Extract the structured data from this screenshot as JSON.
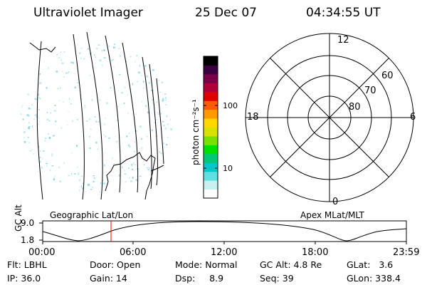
{
  "header": {
    "instrument": "Ultraviolet Imager",
    "date": "25 Dec 07",
    "time": "04:34:55 UT"
  },
  "colorbar": {
    "label": "photon cm⁻²s⁻¹",
    "ticks": [
      "100",
      "10"
    ],
    "colors": [
      "#ffffff",
      "#c8f0f0",
      "#5fe0e0",
      "#00c8c8",
      "#00c878",
      "#00e000",
      "#7ae000",
      "#d8e000",
      "#ffd800",
      "#ff9a00",
      "#ff5a00",
      "#e00000",
      "#b0003a",
      "#7a0048",
      "#3a0040",
      "#000000"
    ]
  },
  "polar_plot": {
    "hour_labels": [
      "12",
      "18",
      "6",
      "0"
    ],
    "lat_labels": [
      "60",
      "70",
      "80"
    ]
  },
  "footer_plot": {
    "left_title": "Geographic Lat/Lon",
    "right_title": "Apex MLat/MLT",
    "y_axis_label": "GC Alt",
    "y_ticks": [
      "9.0",
      "1.8"
    ],
    "x_ticks": [
      "00:00",
      "06:00",
      "12:00",
      "18:00",
      "23:59"
    ],
    "line_color": "#000000",
    "marker_color": "#ff0000"
  },
  "status": {
    "filter": "Flt: LBHL",
    "door": "Door: Open",
    "mode": "Mode: Normal",
    "gc_alt": "GC Alt: 4.8 Re",
    "glat": "GLat:   3.6",
    "ip": "IP: 36.0",
    "gain": "Gain: 14",
    "dsp": "Dsp:     8.9",
    "seq": "Seq: 39",
    "glon": "GLon: 338.4"
  }
}
